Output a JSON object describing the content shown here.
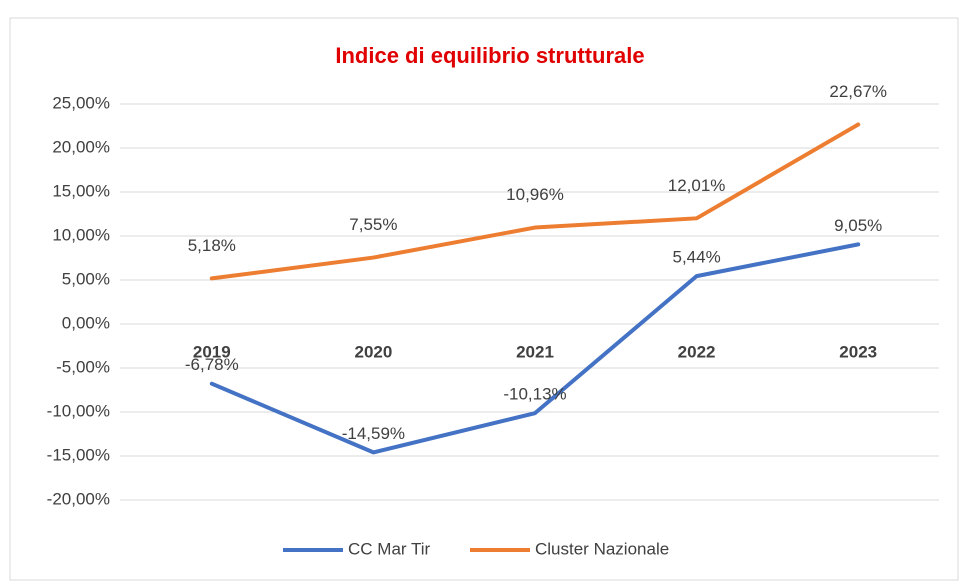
{
  "chart_data": {
    "type": "line",
    "title": "Indice di equilibrio strutturale",
    "categories": [
      "2019",
      "2020",
      "2021",
      "2022",
      "2023"
    ],
    "series": [
      {
        "name": "CC Mar Tir",
        "color": "#4472c4",
        "values": [
          -6.78,
          -14.59,
          -10.13,
          5.44,
          9.05
        ],
        "value_labels": [
          "-6,78%",
          "-14,59%",
          "-10,13%",
          "5,44%",
          "9,05%"
        ]
      },
      {
        "name": "Cluster Nazionale",
        "color": "#ed7d31",
        "values": [
          5.18,
          7.55,
          10.96,
          12.01,
          22.67
        ],
        "value_labels": [
          "5,18%",
          "7,55%",
          "10,96%",
          "12,01%",
          "22,67%"
        ]
      }
    ],
    "ylim": [
      -20,
      25
    ],
    "yticks": [
      {
        "value": -20,
        "label": "-20,00%"
      },
      {
        "value": -15,
        "label": "-15,00%"
      },
      {
        "value": -10,
        "label": "-10,00%"
      },
      {
        "value": -5,
        "label": "-5,00%"
      },
      {
        "value": 0,
        "label": "0,00%"
      },
      {
        "value": 5,
        "label": "5,00%"
      },
      {
        "value": 10,
        "label": "10,00%"
      },
      {
        "value": 15,
        "label": "15,00%"
      },
      {
        "value": 20,
        "label": "20,00%"
      },
      {
        "value": 25,
        "label": "25,00%"
      }
    ],
    "grid": true,
    "legend": "bottom"
  }
}
